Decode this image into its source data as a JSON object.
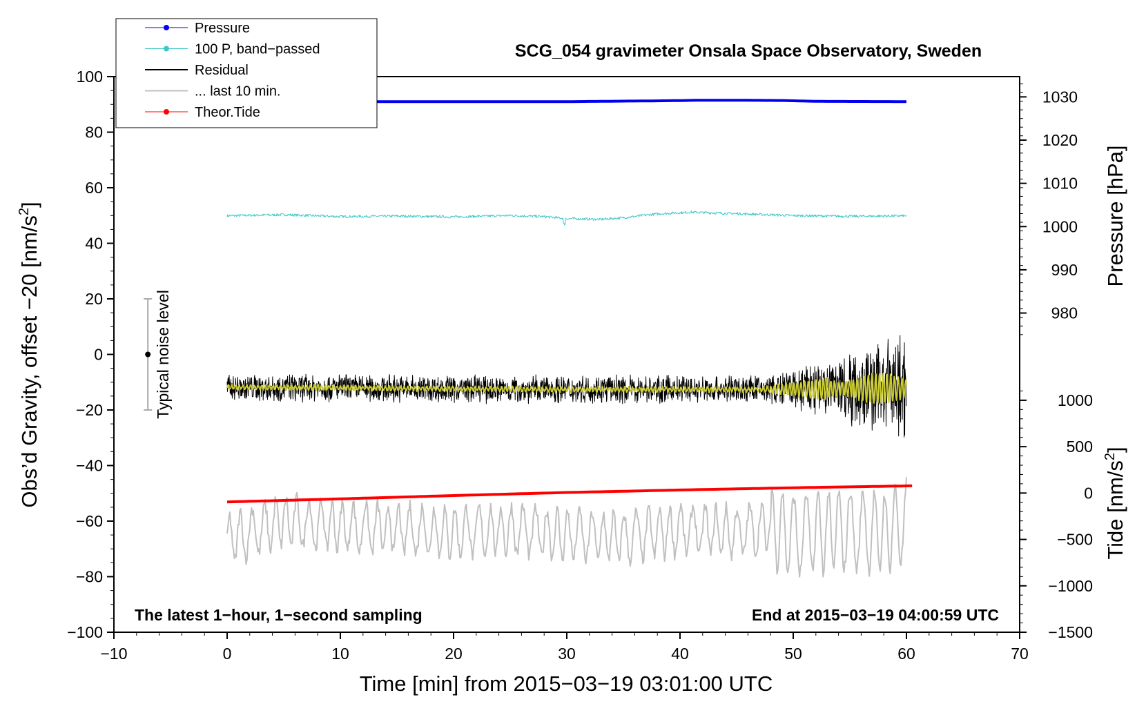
{
  "chart_data": {
    "type": "line",
    "title": "SCG_054 gravimeter Onsala Space Observatory, Sweden",
    "xlabel": "Time [min] from 2015−03−19 03:01:00 UTC",
    "ylabel_left": "Obs’d Gravity, offset −20 [nm/s",
    "ylabel_left_sup": "2",
    "ylabel_left_end": "]",
    "ylabel_pressure": "Pressure [hPa]",
    "ylabel_tide": "Tide [nm/s",
    "ylabel_tide_sup": "2",
    "ylabel_tide_end": "]",
    "xlim": [
      -10,
      70
    ],
    "ylim": [
      -100,
      100
    ],
    "x_ticks": [
      {
        "v": -10,
        "label": "−10"
      },
      {
        "v": 0,
        "label": "0"
      },
      {
        "v": 10,
        "label": "10"
      },
      {
        "v": 20,
        "label": "20"
      },
      {
        "v": 30,
        "label": "30"
      },
      {
        "v": 40,
        "label": "40"
      },
      {
        "v": 50,
        "label": "50"
      },
      {
        "v": 60,
        "label": "60"
      },
      {
        "v": 70,
        "label": "70"
      }
    ],
    "y_ticks_left": [
      {
        "v": 100,
        "label": "100"
      },
      {
        "v": 80,
        "label": "80"
      },
      {
        "v": 60,
        "label": "60"
      },
      {
        "v": 40,
        "label": "40"
      },
      {
        "v": 20,
        "label": "20"
      },
      {
        "v": 0,
        "label": "0"
      },
      {
        "v": -20,
        "label": "−20"
      },
      {
        "v": -40,
        "label": "−40"
      },
      {
        "v": -60,
        "label": "−60"
      },
      {
        "v": -80,
        "label": "−80"
      },
      {
        "v": -100,
        "label": "−100"
      }
    ],
    "pressure_axis": {
      "ticks": [
        {
          "v": 1030,
          "label": "1030"
        },
        {
          "v": 1020,
          "label": "1020"
        },
        {
          "v": 1010,
          "label": "1010"
        },
        {
          "v": 1000,
          "label": "1000"
        },
        {
          "v": 990,
          "label": "990"
        },
        {
          "v": 980,
          "label": "980"
        }
      ],
      "ref_value": 1030,
      "ref_gravity": 92.7,
      "ref2_value": 980,
      "ref2_gravity": 14.9
    },
    "tide_axis": {
      "ticks": [
        {
          "v": 1000,
          "label": "1000"
        },
        {
          "v": 500,
          "label": "500"
        },
        {
          "v": 0,
          "label": "0"
        },
        {
          "v": -500,
          "label": "−500"
        },
        {
          "v": -1000,
          "label": "−1000"
        },
        {
          "v": -1500,
          "label": "−1500"
        }
      ],
      "ref_value": 1000,
      "ref_gravity": -16.5,
      "ref2_value": -1500,
      "ref2_gravity": -100
    },
    "series": [
      {
        "name": "Pressure",
        "color": "#0000ee",
        "x": [
          0,
          10,
          20,
          30,
          38.5,
          42,
          45,
          49,
          52,
          60
        ],
        "y": [
          91.0,
          91.0,
          91.0,
          91.0,
          91.3,
          91.5,
          91.5,
          91.4,
          91.1,
          91.0
        ]
      },
      {
        "name": "100 P, band−passed",
        "color": "#3cc8c8",
        "x": [
          0,
          5,
          10,
          15,
          20,
          25,
          28,
          30,
          33,
          35,
          38,
          41,
          44,
          47,
          50,
          55,
          60
        ],
        "y": [
          49.9,
          50.3,
          49.6,
          49.8,
          49.5,
          50.0,
          49.6,
          48.9,
          48.6,
          49.2,
          50.6,
          51.2,
          50.8,
          50.4,
          50.0,
          49.7,
          49.9
        ]
      },
      {
        "name": "Residual",
        "color": "#000000",
        "x": [
          0,
          10,
          20,
          30,
          40,
          47,
          50,
          55,
          58,
          60
        ],
        "y": [
          -12,
          -12,
          -12.5,
          -12.5,
          -12.5,
          -12.5,
          -12.5,
          -12,
          -12,
          -12
        ]
      },
      {
        "name": "... last 10 min.",
        "color": "#c0c0c0",
        "x": [
          0,
          5,
          10,
          15,
          20,
          25,
          30,
          35,
          40,
          45,
          48,
          50,
          55,
          58,
          60
        ],
        "y": [
          -67,
          -60,
          -62,
          -63,
          -64,
          -63,
          -65,
          -66,
          -63,
          -64,
          -62,
          -65,
          -63,
          -64,
          -60
        ]
      },
      {
        "name": "Theor.Tide",
        "color": "#ff0000",
        "x": [
          0,
          10,
          20,
          30,
          40,
          50,
          60.5
        ],
        "y": [
          -53.1,
          -52.0,
          -50.8,
          -49.7,
          -48.8,
          -48.0,
          -47.3
        ]
      },
      {
        "name": "Residual smoothed",
        "color": "#cccc33",
        "x": [
          0,
          10,
          20,
          30,
          40,
          47,
          52,
          55,
          58,
          60
        ],
        "y": [
          -11.8,
          -12.0,
          -12.4,
          -12.6,
          -12.6,
          -12.6,
          -12.5,
          -12.3,
          -12.2,
          -12.2
        ]
      }
    ],
    "noise_marker": {
      "x": -7,
      "y": 0,
      "low": -20,
      "high": 20,
      "label": "Typical noise level"
    },
    "note_left": "The latest 1−hour, 1−second sampling",
    "note_right": "End at 2015−03−19 04:00:59 UTC",
    "legend": [
      {
        "label": "Pressure",
        "color": "#0000ee",
        "style": "line-dot"
      },
      {
        "label": "100 P, band−passed",
        "color": "#3cc8c8",
        "style": "line-dot"
      },
      {
        "label": "Residual",
        "color": "#000000",
        "style": "line"
      },
      {
        "label": "... last 10 min.",
        "color": "#c0c0c0",
        "style": "line"
      },
      {
        "label": "Theor.Tide",
        "color": "#ff0000",
        "style": "line-dot"
      }
    ],
    "legend_position": "top-left"
  }
}
